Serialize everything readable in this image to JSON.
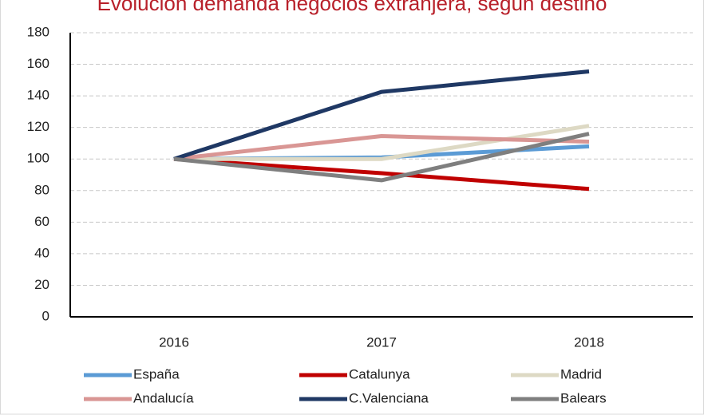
{
  "chart_data": {
    "type": "line",
    "title": "Evolución demanda negocios extranjera, según destino",
    "categories": [
      "2016",
      "2017",
      "2018"
    ],
    "series": [
      {
        "name": "España",
        "color": "#5b9bd5",
        "values": [
          100,
          101,
          108
        ]
      },
      {
        "name": "Catalunya",
        "color": "#c00000",
        "values": [
          100,
          91,
          81
        ]
      },
      {
        "name": "Madrid",
        "color": "#ddd9c4",
        "values": [
          100,
          100,
          121
        ]
      },
      {
        "name": "Andalucía",
        "color": "#d99694",
        "values": [
          100,
          114.5,
          111
        ]
      },
      {
        "name": "C.Valenciana",
        "color": "#1f3864",
        "values": [
          100,
          142.5,
          155.5
        ]
      },
      {
        "name": "Balears",
        "color": "#7f7f7f",
        "values": [
          100,
          86.5,
          116
        ]
      }
    ],
    "ylim": [
      0,
      180
    ],
    "yticks": [
      0,
      20,
      40,
      60,
      80,
      100,
      120,
      140,
      160,
      180
    ],
    "grid": true,
    "legend": "bottom"
  }
}
